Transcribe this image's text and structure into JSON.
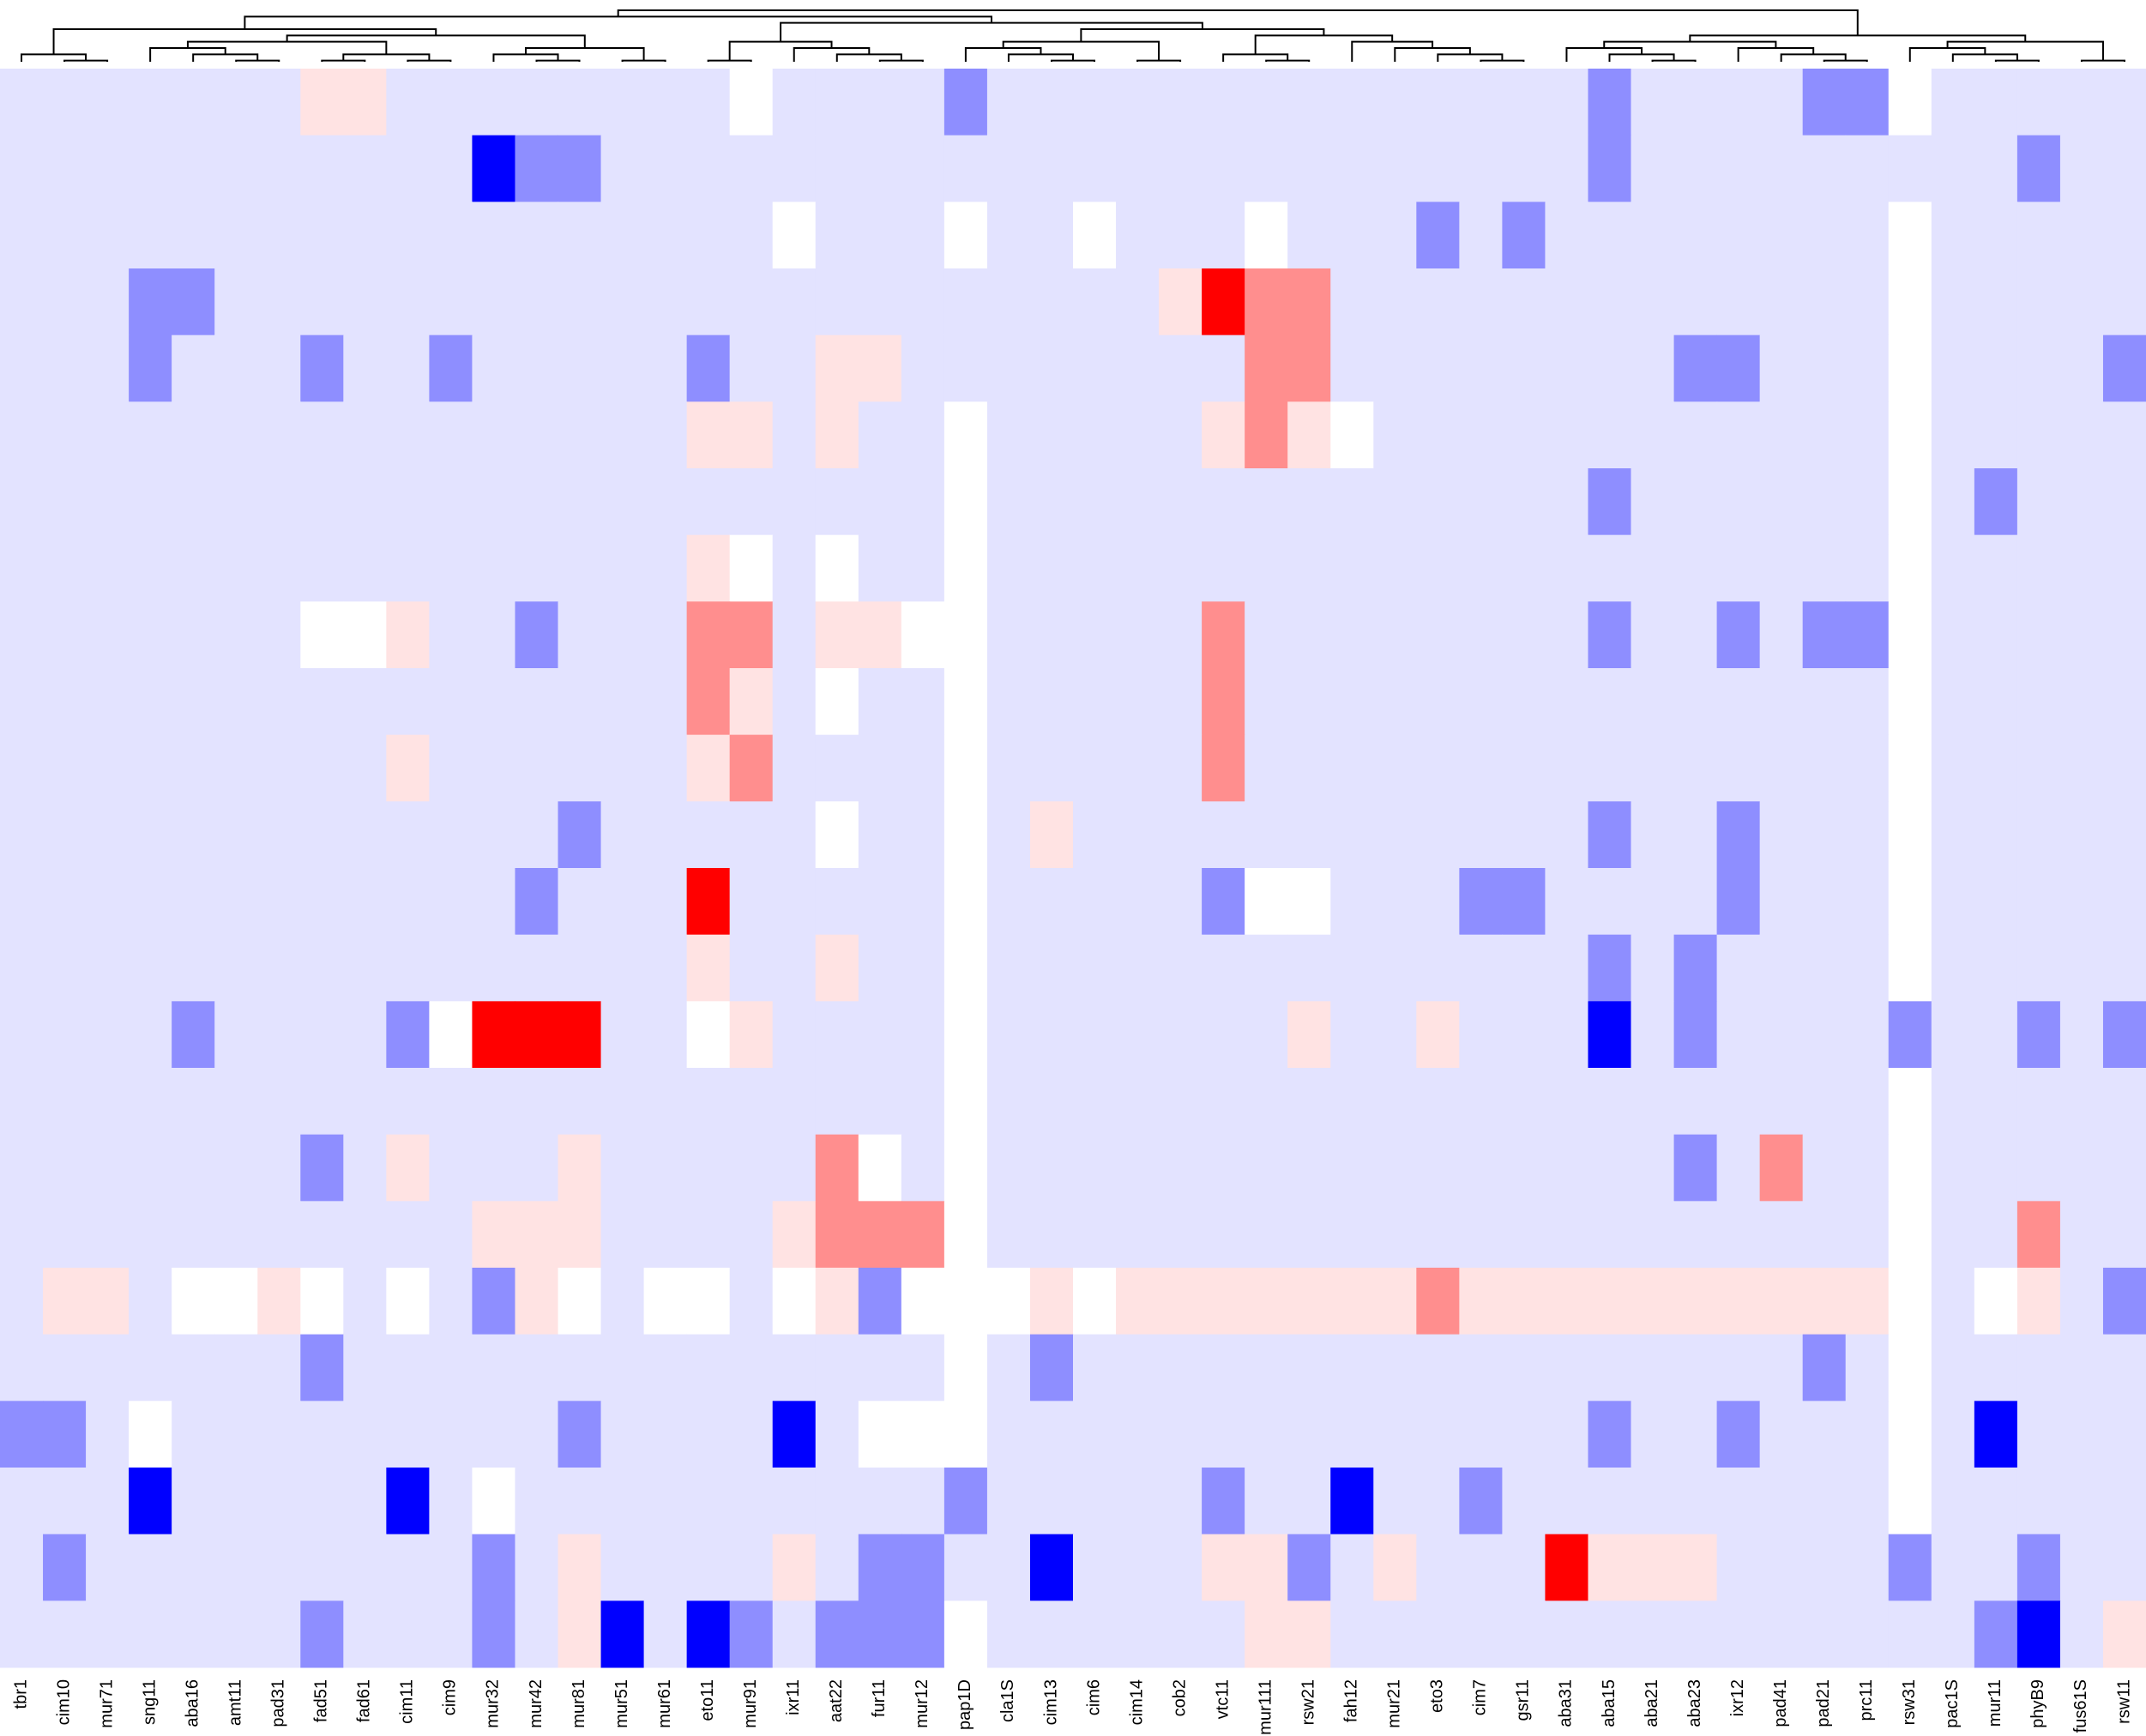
{
  "chart_data": {
    "type": "heatmap",
    "categories": [
      "tbr1",
      "cim10",
      "mur71",
      "sng11",
      "aba16",
      "amt11",
      "pad31",
      "fad51",
      "fad61",
      "cim11",
      "cim9",
      "mur32",
      "mur42",
      "mur81",
      "mur51",
      "mur61",
      "eto11",
      "mur91",
      "ixr11",
      "aat22",
      "fur11",
      "mur12",
      "pap1D",
      "cla1S",
      "cim13",
      "cim6",
      "cim14",
      "cob2",
      "vtc11",
      "mur111",
      "rsw21",
      "fah12",
      "mur21",
      "eto3",
      "cim7",
      "gsr11",
      "aba31",
      "aba15",
      "aba21",
      "aba23",
      "ixr12",
      "pad41",
      "pad21",
      "prc11",
      "rsw31",
      "pac1S",
      "mur11",
      "phyB9",
      "fus61S",
      "rsw11"
    ],
    "zlim": [
      -3,
      3
    ],
    "low_color": "#0000ff",
    "mid_color": "#ffffff",
    "high_color": "#ff0000",
    "dendrogram": true,
    "values": [
      [
        -1,
        -1,
        -1,
        -1,
        -1,
        -1,
        -1,
        1,
        1,
        -1,
        -1,
        -1,
        -1,
        -1,
        -1,
        -1,
        -1,
        0,
        -1,
        -1,
        -1,
        -1,
        -2,
        -1,
        -1,
        -1,
        -1,
        -1,
        -1,
        -1,
        -1,
        -1,
        -1,
        -1,
        -1,
        -1,
        -1,
        -2,
        -1,
        -1,
        -1,
        -1,
        -2,
        -2,
        0,
        -1,
        -1,
        -1,
        -1,
        -1
      ],
      [
        -1,
        -1,
        -1,
        -1,
        -1,
        -1,
        -1,
        -1,
        -1,
        -1,
        -1,
        -3,
        -2,
        -2,
        -1,
        -1,
        -1,
        -1,
        -1,
        -1,
        -1,
        -1,
        -1,
        -1,
        -1,
        -1,
        -1,
        -1,
        -1,
        -1,
        -1,
        -1,
        -1,
        -1,
        -1,
        -1,
        -1,
        -2,
        -1,
        -1,
        -1,
        -1,
        -1,
        -1,
        -1,
        -1,
        -1,
        -2,
        -1,
        -1
      ],
      [
        -1,
        -1,
        -1,
        -1,
        -1,
        -1,
        -1,
        -1,
        -1,
        -1,
        -1,
        -1,
        -1,
        -1,
        -1,
        -1,
        -1,
        -1,
        0,
        -1,
        -1,
        -1,
        0,
        -1,
        -1,
        0,
        -1,
        -1,
        -1,
        0,
        -1,
        -1,
        -1,
        -2,
        -1,
        -2,
        -1,
        -1,
        -1,
        -1,
        -1,
        -1,
        -1,
        -1,
        0,
        -1,
        -1,
        -1,
        -1,
        -1
      ],
      [
        -1,
        -1,
        -1,
        -2,
        -2,
        -1,
        -1,
        -1,
        -1,
        -1,
        -1,
        -1,
        -1,
        -1,
        -1,
        -1,
        -1,
        -1,
        -1,
        -1,
        -1,
        -1,
        -1,
        -1,
        -1,
        -1,
        -1,
        1,
        3,
        2,
        2,
        -1,
        -1,
        -1,
        -1,
        -1,
        -1,
        -1,
        -1,
        -1,
        -1,
        -1,
        -1,
        -1,
        0,
        -1,
        -1,
        -1,
        -1,
        -1
      ],
      [
        -1,
        -1,
        -1,
        -2,
        -1,
        -1,
        -1,
        -2,
        -1,
        -1,
        -2,
        -1,
        -1,
        -1,
        -1,
        -1,
        -2,
        -1,
        -1,
        1,
        1,
        -1,
        -1,
        -1,
        -1,
        -1,
        -1,
        -1,
        -1,
        2,
        2,
        -1,
        -1,
        -1,
        -1,
        -1,
        -1,
        -1,
        -1,
        -2,
        -2,
        -1,
        -1,
        -1,
        0,
        -1,
        -1,
        -1,
        -1,
        -2
      ],
      [
        -1,
        -1,
        -1,
        -1,
        -1,
        -1,
        -1,
        -1,
        -1,
        -1,
        -1,
        -1,
        -1,
        -1,
        -1,
        -1,
        1,
        1,
        -1,
        1,
        -1,
        -1,
        0,
        -1,
        -1,
        -1,
        -1,
        -1,
        1,
        2,
        1,
        0,
        -1,
        -1,
        -1,
        -1,
        -1,
        -1,
        -1,
        -1,
        -1,
        -1,
        -1,
        -1,
        0,
        -1,
        -1,
        -1,
        -1,
        -1
      ],
      [
        -1,
        -1,
        -1,
        -1,
        -1,
        -1,
        -1,
        -1,
        -1,
        -1,
        -1,
        -1,
        -1,
        -1,
        -1,
        -1,
        -1,
        -1,
        -1,
        -1,
        -1,
        -1,
        0,
        -1,
        -1,
        -1,
        -1,
        -1,
        -1,
        -1,
        -1,
        -1,
        -1,
        -1,
        -1,
        -1,
        -1,
        -2,
        -1,
        -1,
        -1,
        -1,
        -1,
        -1,
        0,
        -1,
        -2,
        -1,
        -1,
        -1
      ],
      [
        -1,
        -1,
        -1,
        -1,
        -1,
        -1,
        -1,
        -1,
        -1,
        -1,
        -1,
        -1,
        -1,
        -1,
        -1,
        -1,
        1,
        0,
        -1,
        0,
        -1,
        -1,
        0,
        -1,
        -1,
        -1,
        -1,
        -1,
        -1,
        -1,
        -1,
        -1,
        -1,
        -1,
        -1,
        -1,
        -1,
        -1,
        -1,
        -1,
        -1,
        -1,
        -1,
        -1,
        0,
        -1,
        -1,
        -1,
        -1,
        -1
      ],
      [
        -1,
        -1,
        -1,
        -1,
        -1,
        -1,
        -1,
        0,
        0,
        1,
        -1,
        -1,
        -2,
        -1,
        -1,
        -1,
        2,
        2,
        -1,
        1,
        1,
        0,
        0,
        -1,
        -1,
        -1,
        -1,
        -1,
        2,
        -1,
        -1,
        -1,
        -1,
        -1,
        -1,
        -1,
        -1,
        -2,
        -1,
        -1,
        -2,
        -1,
        -2,
        -2,
        0,
        -1,
        -1,
        -1,
        -1,
        -1
      ],
      [
        -1,
        -1,
        -1,
        -1,
        -1,
        -1,
        -1,
        -1,
        -1,
        -1,
        -1,
        -1,
        -1,
        -1,
        -1,
        -1,
        2,
        1,
        -1,
        0,
        -1,
        -1,
        0,
        -1,
        -1,
        -1,
        -1,
        -1,
        2,
        -1,
        -1,
        -1,
        -1,
        -1,
        -1,
        -1,
        -1,
        -1,
        -1,
        -1,
        -1,
        -1,
        -1,
        -1,
        0,
        -1,
        -1,
        -1,
        -1,
        -1
      ],
      [
        -1,
        -1,
        -1,
        -1,
        -1,
        -1,
        -1,
        -1,
        -1,
        1,
        -1,
        -1,
        -1,
        -1,
        -1,
        -1,
        1,
        2,
        -1,
        -1,
        -1,
        -1,
        0,
        -1,
        -1,
        -1,
        -1,
        -1,
        2,
        -1,
        -1,
        -1,
        -1,
        -1,
        -1,
        -1,
        -1,
        -1,
        -1,
        -1,
        -1,
        -1,
        -1,
        -1,
        0,
        -1,
        -1,
        -1,
        -1,
        -1
      ],
      [
        -1,
        -1,
        -1,
        -1,
        -1,
        -1,
        -1,
        -1,
        -1,
        -1,
        -1,
        -1,
        -1,
        -2,
        -1,
        -1,
        -1,
        -1,
        -1,
        0,
        -1,
        -1,
        0,
        -1,
        1,
        -1,
        -1,
        -1,
        -1,
        -1,
        -1,
        -1,
        -1,
        -1,
        -1,
        -1,
        -1,
        -2,
        -1,
        -1,
        -2,
        -1,
        -1,
        -1,
        0,
        -1,
        -1,
        -1,
        -1,
        -1
      ],
      [
        -1,
        -1,
        -1,
        -1,
        -1,
        -1,
        -1,
        -1,
        -1,
        -1,
        -1,
        -1,
        -2,
        -1,
        -1,
        -1,
        3,
        -1,
        -1,
        -1,
        -1,
        -1,
        0,
        -1,
        -1,
        -1,
        -1,
        -1,
        -2,
        0,
        0,
        -1,
        -1,
        -1,
        -2,
        -2,
        -1,
        -1,
        -1,
        -1,
        -2,
        -1,
        -1,
        -1,
        0,
        -1,
        -1,
        -1,
        -1,
        -1
      ],
      [
        -1,
        -1,
        -1,
        -1,
        -1,
        -1,
        -1,
        -1,
        -1,
        -1,
        -1,
        -1,
        -1,
        -1,
        -1,
        -1,
        1,
        -1,
        -1,
        1,
        -1,
        -1,
        0,
        -1,
        -1,
        -1,
        -1,
        -1,
        -1,
        -1,
        -1,
        -1,
        -1,
        -1,
        -1,
        -1,
        -1,
        -2,
        -1,
        -2,
        -1,
        -1,
        -1,
        -1,
        0,
        -1,
        -1,
        -1,
        -1,
        -1
      ],
      [
        -1,
        -1,
        -1,
        -1,
        -2,
        -1,
        -1,
        -1,
        -1,
        -2,
        0,
        3,
        3,
        3,
        -1,
        -1,
        0,
        1,
        -1,
        -1,
        -1,
        -1,
        0,
        -1,
        -1,
        -1,
        -1,
        -1,
        -1,
        -1,
        1,
        -1,
        -1,
        1,
        -1,
        -1,
        -1,
        -3,
        -1,
        -2,
        -1,
        -1,
        -1,
        -1,
        -2,
        -1,
        -1,
        -2,
        -1,
        -2
      ],
      [
        -1,
        -1,
        -1,
        -1,
        -1,
        -1,
        -1,
        -1,
        -1,
        -1,
        -1,
        -1,
        -1,
        -1,
        -1,
        -1,
        -1,
        -1,
        -1,
        -1,
        -1,
        -1,
        0,
        -1,
        -1,
        -1,
        -1,
        -1,
        -1,
        -1,
        -1,
        -1,
        -1,
        -1,
        -1,
        -1,
        -1,
        -1,
        -1,
        -1,
        -1,
        -1,
        -1,
        -1,
        0,
        -1,
        -1,
        -1,
        -1,
        -1
      ],
      [
        -1,
        -1,
        -1,
        -1,
        -1,
        -1,
        -1,
        -2,
        -1,
        1,
        -1,
        -1,
        -1,
        1,
        -1,
        -1,
        -1,
        -1,
        -1,
        2,
        0,
        -1,
        0,
        -1,
        -1,
        -1,
        -1,
        -1,
        -1,
        -1,
        -1,
        -1,
        -1,
        -1,
        -1,
        -1,
        -1,
        -1,
        -1,
        -2,
        -1,
        2,
        -1,
        -1,
        0,
        -1,
        -1,
        -1,
        -1,
        -1
      ],
      [
        -1,
        -1,
        -1,
        -1,
        -1,
        -1,
        -1,
        -1,
        -1,
        -1,
        -1,
        1,
        1,
        1,
        -1,
        -1,
        -1,
        -1,
        1,
        2,
        2,
        2,
        0,
        -1,
        -1,
        -1,
        -1,
        -1,
        -1,
        -1,
        -1,
        -1,
        -1,
        -1,
        -1,
        -1,
        -1,
        -1,
        -1,
        -1,
        -1,
        -1,
        -1,
        -1,
        0,
        -1,
        -1,
        2,
        -1,
        -1
      ],
      [
        -1,
        1,
        1,
        -1,
        0,
        0,
        1,
        0,
        -1,
        0,
        -1,
        -2,
        1,
        0,
        -1,
        0,
        0,
        -1,
        0,
        1,
        -2,
        0,
        0,
        0,
        1,
        0,
        1,
        1,
        1,
        1,
        1,
        1,
        1,
        2,
        1,
        1,
        1,
        1,
        1,
        1,
        1,
        1,
        1,
        1,
        0,
        -1,
        0,
        1,
        -1,
        -2
      ],
      [
        -1,
        -1,
        -1,
        -1,
        -1,
        -1,
        -1,
        -2,
        -1,
        -1,
        -1,
        -1,
        -1,
        -1,
        -1,
        -1,
        -1,
        -1,
        -1,
        -1,
        -1,
        -1,
        0,
        -1,
        -2,
        -1,
        -1,
        -1,
        -1,
        -1,
        -1,
        -1,
        -1,
        -1,
        -1,
        -1,
        -1,
        -1,
        -1,
        -1,
        -1,
        -1,
        -2,
        -1,
        0,
        -1,
        -1,
        -1,
        -1,
        -1
      ],
      [
        -2,
        -2,
        -1,
        0,
        -1,
        -1,
        -1,
        -1,
        -1,
        -1,
        -1,
        -1,
        -1,
        -2,
        -1,
        -1,
        -1,
        -1,
        -3,
        -1,
        0,
        0,
        0,
        -1,
        -1,
        -1,
        -1,
        -1,
        -1,
        -1,
        -1,
        -1,
        -1,
        -1,
        -1,
        -1,
        -1,
        -2,
        -1,
        -1,
        -2,
        -1,
        -1,
        -1,
        0,
        -1,
        -3,
        -1,
        -1,
        -1
      ],
      [
        -1,
        -1,
        -1,
        -3,
        -1,
        -1,
        -1,
        -1,
        -1,
        -3,
        -1,
        0,
        -1,
        -1,
        -1,
        -1,
        -1,
        -1,
        -1,
        -1,
        -1,
        -1,
        -2,
        -1,
        -1,
        -1,
        -1,
        -1,
        -2,
        -1,
        -1,
        -3,
        -1,
        -1,
        -2,
        -1,
        -1,
        -1,
        -1,
        -1,
        -1,
        -1,
        -1,
        -1,
        0,
        -1,
        -1,
        -1,
        -1,
        -1
      ],
      [
        -1,
        -2,
        -1,
        -1,
        -1,
        -1,
        -1,
        -1,
        -1,
        -1,
        -1,
        -2,
        -1,
        1,
        -1,
        -1,
        -1,
        -1,
        1,
        -1,
        -2,
        -2,
        -1,
        -1,
        -3,
        -1,
        -1,
        -1,
        1,
        1,
        -2,
        -1,
        1,
        -1,
        -1,
        -1,
        3,
        1,
        1,
        1,
        -1,
        -1,
        -1,
        -1,
        -2,
        -1,
        -1,
        -2,
        -1,
        -1
      ],
      [
        -1,
        -1,
        -1,
        -1,
        -1,
        -1,
        -1,
        -2,
        -1,
        -1,
        -1,
        -2,
        -1,
        1,
        -3,
        -1,
        -3,
        -2,
        -1,
        -2,
        -2,
        -2,
        0,
        -1,
        -1,
        -1,
        -1,
        -1,
        -1,
        1,
        1,
        -1,
        -1,
        -1,
        -1,
        -1,
        -1,
        -1,
        -1,
        -1,
        -1,
        -1,
        -1,
        -1,
        -1,
        -1,
        -2,
        -3,
        -1,
        1
      ]
    ]
  }
}
